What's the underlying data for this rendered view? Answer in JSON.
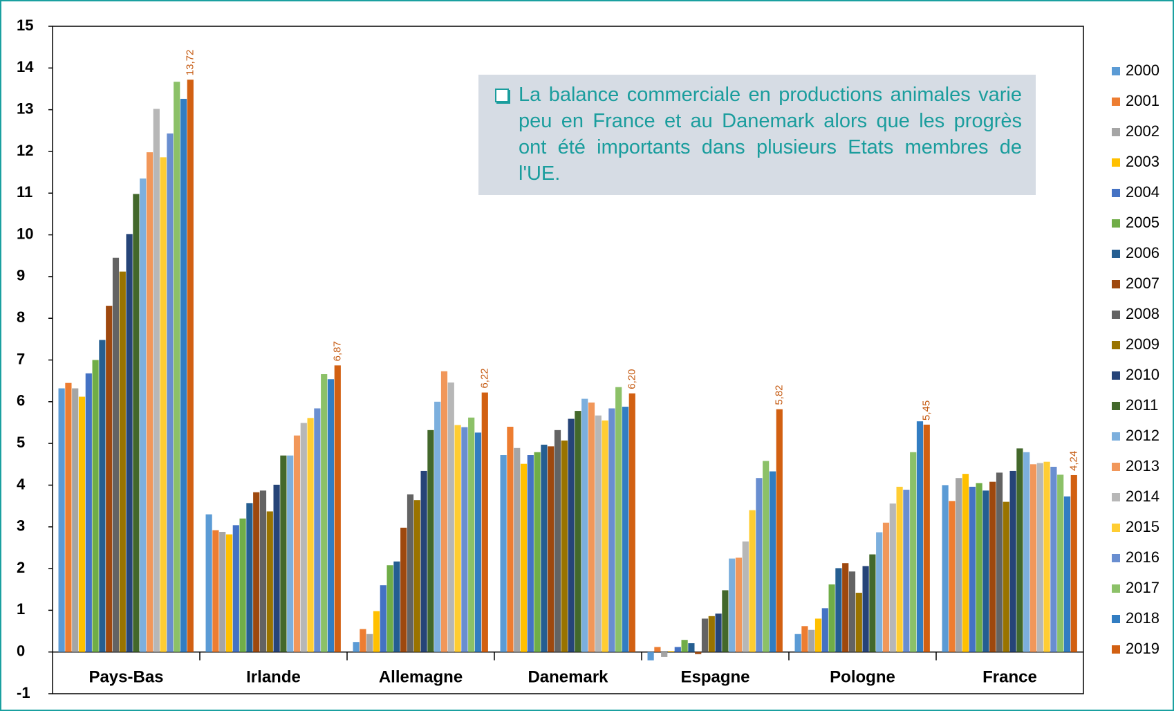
{
  "chart_data": {
    "type": "bar",
    "annotation": "La balance commerciale en productions animales varie peu en France et au Danemark alors que les progrès ont été importants dans plusieurs Etats membres de l'UE.",
    "categories": [
      "Pays-Bas",
      "Irlande",
      "Allemagne",
      "Danemark",
      "Espagne",
      "Pologne",
      "France"
    ],
    "series": [
      {
        "name": "2000",
        "color": "#5b9bd5",
        "values": [
          6.32,
          3.3,
          0.24,
          4.72,
          -0.2,
          0.43,
          4.0
        ]
      },
      {
        "name": "2001",
        "color": "#ed7d31",
        "values": [
          6.45,
          2.92,
          0.55,
          5.4,
          0.12,
          0.62,
          3.62
        ]
      },
      {
        "name": "2002",
        "color": "#a5a5a5",
        "values": [
          6.32,
          2.88,
          0.43,
          4.89,
          -0.12,
          0.53,
          4.17
        ]
      },
      {
        "name": "2003",
        "color": "#ffc000",
        "values": [
          6.12,
          2.82,
          0.98,
          4.51,
          0.02,
          0.8,
          4.27
        ]
      },
      {
        "name": "2004",
        "color": "#4472c4",
        "values": [
          6.68,
          3.04,
          1.6,
          4.72,
          0.12,
          1.05,
          3.96
        ]
      },
      {
        "name": "2005",
        "color": "#70ad47",
        "values": [
          7.0,
          3.2,
          2.08,
          4.79,
          0.29,
          1.62,
          4.05
        ]
      },
      {
        "name": "2006",
        "color": "#255e91",
        "values": [
          7.48,
          3.57,
          2.17,
          4.97,
          0.21,
          2.01,
          3.87
        ]
      },
      {
        "name": "2007",
        "color": "#9e480e",
        "values": [
          8.3,
          3.83,
          2.98,
          4.93,
          -0.05,
          2.13,
          4.08
        ]
      },
      {
        "name": "2008",
        "color": "#636363",
        "values": [
          9.45,
          3.87,
          3.78,
          5.32,
          0.8,
          1.93,
          4.3
        ]
      },
      {
        "name": "2009",
        "color": "#997300",
        "values": [
          9.12,
          3.37,
          3.64,
          5.07,
          0.86,
          1.42,
          3.6
        ]
      },
      {
        "name": "2010",
        "color": "#264478",
        "values": [
          10.02,
          4.01,
          4.34,
          5.59,
          0.92,
          2.06,
          4.34
        ]
      },
      {
        "name": "2011",
        "color": "#43682b",
        "values": [
          10.98,
          4.71,
          5.32,
          5.78,
          1.48,
          2.34,
          4.88
        ]
      },
      {
        "name": "2012",
        "color": "#7cafdd",
        "values": [
          11.35,
          4.71,
          6.0,
          6.07,
          2.24,
          2.87,
          4.79
        ]
      },
      {
        "name": "2013",
        "color": "#f1975a",
        "values": [
          11.98,
          5.19,
          6.73,
          5.98,
          2.26,
          3.1,
          4.5
        ]
      },
      {
        "name": "2014",
        "color": "#b7b7b7",
        "values": [
          13.02,
          5.49,
          6.46,
          5.67,
          2.65,
          3.56,
          4.53
        ]
      },
      {
        "name": "2015",
        "color": "#ffcd33",
        "values": [
          11.86,
          5.61,
          5.44,
          5.55,
          3.4,
          3.96,
          4.56
        ]
      },
      {
        "name": "2016",
        "color": "#698ed0",
        "values": [
          12.43,
          5.84,
          5.39,
          5.84,
          4.17,
          3.89,
          4.44
        ]
      },
      {
        "name": "2017",
        "color": "#8cc168",
        "values": [
          13.67,
          6.66,
          5.62,
          6.35,
          4.58,
          4.79,
          4.25
        ]
      },
      {
        "name": "2018",
        "color": "#327dc2",
        "values": [
          13.26,
          6.54,
          5.26,
          5.88,
          4.33,
          5.53,
          3.73
        ]
      },
      {
        "name": "2019",
        "color": "#d26012",
        "values": [
          13.72,
          6.87,
          6.22,
          6.2,
          5.82,
          5.45,
          4.24
        ],
        "value_labels": [
          "13,72",
          "6,87",
          "6,22",
          "6,20",
          "5,82",
          "5,45",
          "4,24"
        ]
      }
    ],
    "ylim": [
      -1,
      15
    ],
    "yticks": [
      -1,
      0,
      1,
      2,
      3,
      4,
      5,
      6,
      7,
      8,
      9,
      10,
      11,
      12,
      13,
      14,
      15
    ],
    "legend": "right",
    "value_label_color": "#c55a11"
  }
}
